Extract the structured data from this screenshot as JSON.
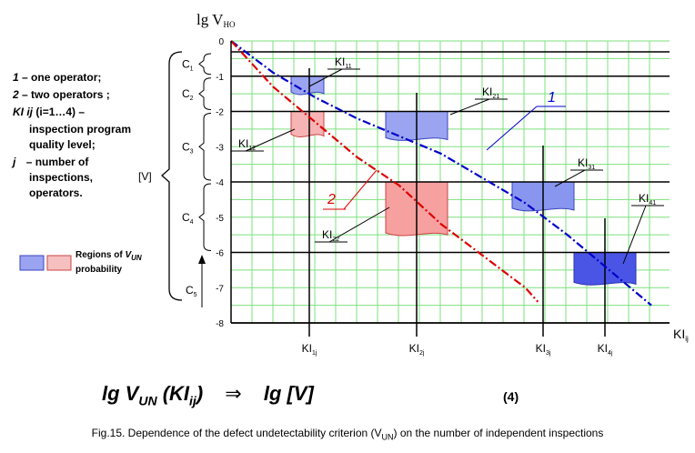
{
  "chart_data": {
    "type": "line",
    "ylabel": "lg V",
    "ylabel_sub": "НО",
    "xlabel": "KI",
    "xlabel_sub": "ij",
    "ylim": [
      -8,
      0
    ],
    "yticks": [
      "0",
      "-1",
      "-2",
      "-3",
      "-4",
      "-5",
      "-6",
      "-7",
      "-8"
    ],
    "x_categories": [
      {
        "main": "KI",
        "sub": "1j"
      },
      {
        "main": "KI",
        "sub": "2j"
      },
      {
        "main": "KI",
        "sub": "3j"
      },
      {
        "main": "KI",
        "sub": "4j"
      }
    ],
    "series": [
      {
        "name": "1",
        "color": "#0000cc",
        "style": "dash-dot",
        "points": [
          [
            0,
            0
          ],
          [
            1,
            -0.9
          ],
          [
            2,
            -1.6
          ],
          [
            3,
            -2.2
          ],
          [
            4,
            -2.7
          ],
          [
            5,
            -3.2
          ],
          [
            6,
            -3.9
          ],
          [
            7,
            -4.6
          ],
          [
            8,
            -5.5
          ],
          [
            9,
            -6.5
          ],
          [
            10,
            -7.5
          ]
        ]
      },
      {
        "name": "2",
        "color": "#dd0000",
        "style": "dash-dot",
        "points": [
          [
            0,
            0
          ],
          [
            1,
            -1.3
          ],
          [
            2,
            -2.3
          ],
          [
            3,
            -3.3
          ],
          [
            4,
            -4.1
          ],
          [
            5,
            -5.2
          ],
          [
            6,
            -6.1
          ],
          [
            7,
            -7.0
          ],
          [
            7.3,
            -7.4
          ]
        ]
      }
    ],
    "regions": [
      {
        "label": "KI",
        "sub": "11",
        "col": 1,
        "y_top": -1.0,
        "y_bottom": -1.5,
        "color": "#9aa4f0"
      },
      {
        "label": "KI",
        "sub": "12",
        "col": 1,
        "y_top": -2.0,
        "y_bottom": -2.7,
        "color": "#f6b4b4"
      },
      {
        "label": "KI",
        "sub": "21",
        "col": 2,
        "y_top": -2.0,
        "y_bottom": -2.8,
        "color": "#9aa4f0"
      },
      {
        "label": "KI",
        "sub": "22",
        "col": 2,
        "y_top": -4.0,
        "y_bottom": -5.5,
        "color": "#f6a0a0"
      },
      {
        "label": "KI",
        "sub": "31",
        "col": 3,
        "y_top": -4.0,
        "y_bottom": -4.8,
        "color": "#8896f0"
      },
      {
        "label": "KI",
        "sub": "41",
        "col": 4,
        "y_top": -6.0,
        "y_bottom": -6.9,
        "color": "#4a55e6"
      }
    ],
    "grid": true,
    "brace_labels": [
      "C1",
      "C2",
      "C3",
      "C4",
      "C5"
    ],
    "bracket_label": "[V]"
  },
  "legend": {
    "line1_num": "1",
    "line1_text": "– one operator;",
    "line2_num": "2",
    "line2_text": "– two operators ;",
    "line3_sym": "KI ij",
    "line3_text": "(i=1…4) –",
    "line4": "inspection program",
    "line5": "quality level;",
    "line6_sym": "j",
    "line6_text": "– number of",
    "line7": "inspections,",
    "line8": "operators.",
    "regions_label": "Regions of",
    "regions_sym": "V",
    "regions_sub": "UN",
    "regions_label2": "probability"
  },
  "formula": {
    "left": "lg V",
    "left_sub": "UN",
    "arg": "(KI",
    "arg_sub": "ij",
    "arg_close": ")",
    "arrow": "⇒",
    "right": "lg [V]",
    "number": "(4)"
  },
  "caption": {
    "before": "Fig.15. Dependence of the defect undetectability criterion (V",
    "sub": "UN",
    "after": ") on the number of independent inspections"
  }
}
